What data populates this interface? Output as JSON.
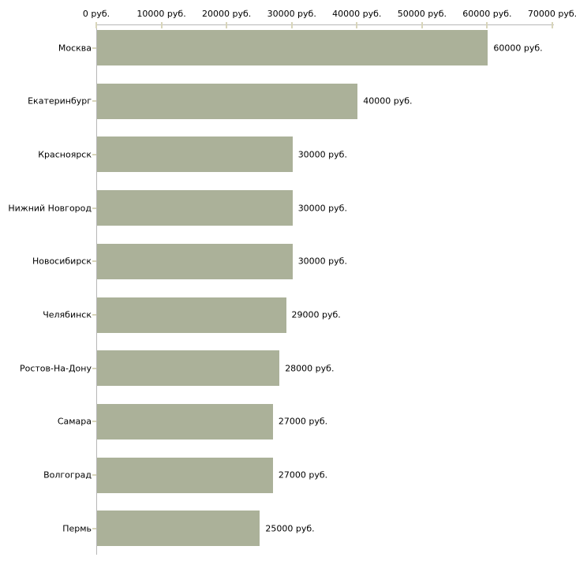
{
  "chart_data": {
    "type": "bar",
    "orientation": "horizontal",
    "title": "",
    "categories": [
      "Москва",
      "Екатеринбург",
      "Красноярск",
      "Нижний Новгород",
      "Новосибирск",
      "Челябинск",
      "Ростов-На-Дону",
      "Самара",
      "Волгоград",
      "Пермь"
    ],
    "values": [
      60000,
      40000,
      30000,
      30000,
      30000,
      29000,
      28000,
      27000,
      27000,
      25000
    ],
    "value_labels": [
      "60000 руб.",
      "40000 руб.",
      "30000 руб.",
      "30000 руб.",
      "30000 руб.",
      "29000 руб.",
      "28000 руб.",
      "27000 руб.",
      "27000 руб.",
      "25000 руб."
    ],
    "x_ticks": [
      0,
      10000,
      20000,
      30000,
      40000,
      50000,
      60000,
      70000
    ],
    "x_tick_labels": [
      "0 руб.",
      "10000 руб.",
      "20000 руб.",
      "30000 руб.",
      "40000 руб.",
      "50000 руб.",
      "60000 руб.",
      "70000 руб."
    ],
    "xlim": [
      0,
      70000
    ],
    "unit": "руб.",
    "xlabel": "",
    "ylabel": "",
    "grid": false,
    "legend_position": "none",
    "colors": {
      "bar": "#abb199",
      "axis_line": "#b7b7b7",
      "tick_mark": "#d8d5ba",
      "text": "#000000",
      "background": "#ffffff"
    }
  }
}
